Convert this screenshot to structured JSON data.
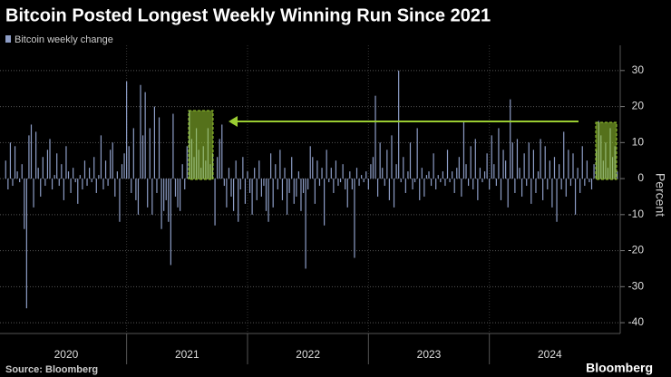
{
  "chart_data": {
    "type": "bar",
    "title": "Bitcoin Posted Longest Weekly Winning Run Since 2021",
    "y_axis_label": "Percent",
    "source": "Source: Bloomberg",
    "brand": "Bloomberg",
    "series": [
      {
        "name": "Bitcoin weekly change",
        "color": "#8d9dc6",
        "values": [
          5,
          -3,
          10,
          -2,
          9,
          2,
          -1,
          4,
          -14,
          -36,
          12,
          15,
          -8,
          13,
          3,
          -5,
          6,
          -2,
          8,
          11,
          -3,
          1,
          7,
          -2,
          4,
          -6,
          9,
          2,
          -4,
          3,
          -1,
          -7,
          1,
          -3,
          5,
          -2,
          3,
          -1,
          6,
          -4,
          1,
          12,
          -3,
          5,
          -2,
          8,
          10,
          -5,
          2,
          -12,
          4,
          7,
          27,
          9,
          -4,
          14,
          -6,
          -10,
          26,
          12,
          24,
          -8,
          14,
          -10,
          20,
          -4,
          17,
          -14,
          -9,
          -6,
          -12,
          -24,
          18,
          -5,
          -8,
          -9,
          4,
          -3,
          9,
          19,
          11,
          6,
          14,
          8,
          3,
          9,
          5,
          14,
          4,
          7,
          -13,
          6,
          11,
          15,
          -2,
          -8,
          3,
          -5,
          -9,
          5,
          -12,
          -3,
          6,
          -7,
          2,
          -4,
          -10,
          3,
          -6,
          5,
          -5,
          -2,
          -9,
          -12,
          7,
          -8,
          4,
          -3,
          8,
          -6,
          3,
          -10,
          -4,
          6,
          -7,
          -5,
          2,
          -9,
          -4,
          -25,
          -3,
          9,
          6,
          -7,
          5,
          -2,
          3,
          -13,
          8,
          -1,
          3,
          -4,
          5,
          -2,
          -1,
          4,
          -3,
          -8,
          2,
          -3,
          -22,
          3,
          -2,
          1,
          -1,
          2,
          -3,
          4,
          6,
          23,
          -5,
          10,
          3,
          -2,
          8,
          -6,
          12,
          -8,
          4,
          30,
          -1,
          6,
          -4,
          2,
          10,
          -3,
          -1,
          14,
          -6,
          3,
          -5,
          1,
          2,
          -2,
          7,
          -3,
          1,
          -1,
          2,
          -2,
          8,
          -1,
          2,
          -4,
          3,
          6,
          -5,
          16,
          4,
          -2,
          9,
          -3,
          11,
          -6,
          3,
          -1,
          2,
          7,
          -3,
          12,
          4,
          -2,
          14,
          -6,
          8,
          5,
          -8,
          22,
          10,
          -4,
          11,
          3,
          -5,
          7,
          -2,
          10,
          -7,
          8,
          -4,
          2,
          11,
          -6,
          9,
          -3,
          5,
          -8,
          6,
          -12,
          4,
          -3,
          13,
          -5,
          8,
          -2,
          7,
          -10,
          3,
          -4,
          9,
          -2,
          5,
          -1,
          -3,
          4,
          8,
          16,
          12,
          5,
          10,
          3,
          14,
          6,
          9,
          2
        ]
      }
    ],
    "categories_labeled": {
      "26": "2020",
      "78": "2021",
      "130": "2022",
      "182": "2023",
      "234": "2024"
    },
    "ylim": [
      -43,
      37
    ],
    "yticks": [
      -40,
      -30,
      -20,
      -10,
      0,
      10,
      20,
      30
    ],
    "grid": true
  }
}
